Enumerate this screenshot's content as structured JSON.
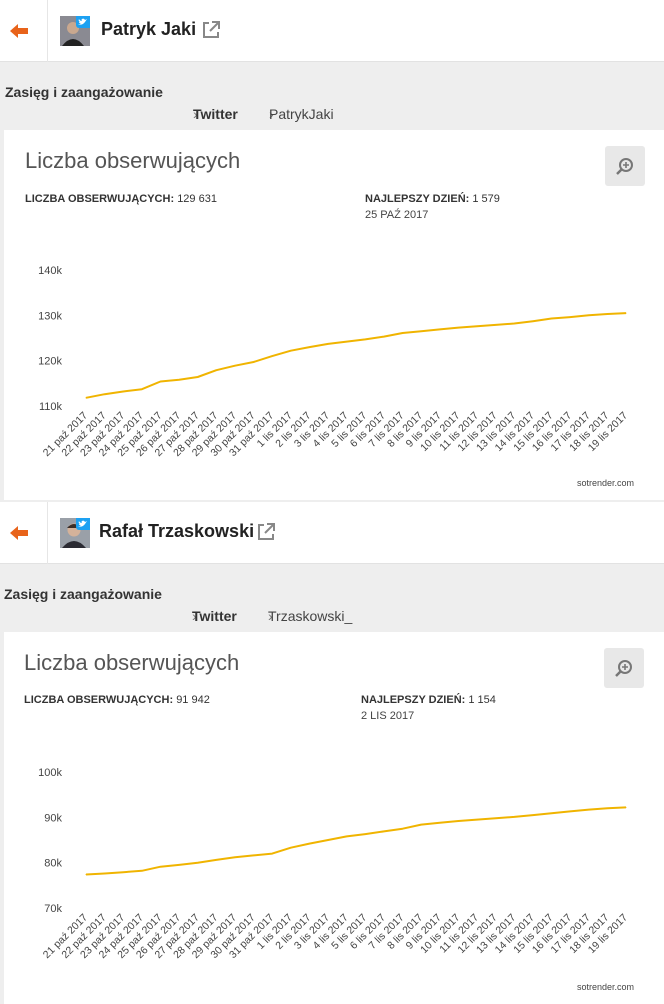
{
  "profiles": [
    {
      "name": "Patryk Jaki",
      "breadcrumb": {
        "section": "Zasięg i zaangażowanie",
        "network": "Twitter",
        "account": "PatrykJaki"
      },
      "card": {
        "title": "Liczba obserwujących",
        "followers_label": "LICZBA OBSERWUJĄCYCH:",
        "followers_value": "129 631",
        "best_day_label": "NAJLEPSZY DZIEŃ:",
        "best_day_value": "1 579",
        "best_day_date": "25 PAŹ 2017",
        "credit": "sotrender.com"
      },
      "chart_data": {
        "type": "line",
        "categories": [
          "21 paź 2017",
          "22 paź 2017",
          "23 paź 2017",
          "24 paź 2017",
          "25 paź 2017",
          "26 paź 2017",
          "27 paź 2017",
          "28 paź 2017",
          "29 paź 2017",
          "30 paź 2017",
          "31 paź 2017",
          "1 lis 2017",
          "2 lis 2017",
          "3 lis 2017",
          "4 lis 2017",
          "5 lis 2017",
          "6 lis 2017",
          "7 lis 2017",
          "8 lis 2017",
          "9 lis 2017",
          "10 lis 2017",
          "11 lis 2017",
          "12 lis 2017",
          "13 lis 2017",
          "14 lis 2017",
          "15 lis 2017",
          "16 lis 2017",
          "17 lis 2017",
          "18 lis 2017",
          "19 lis 2017"
        ],
        "values": [
          111800,
          112600,
          113200,
          113700,
          115400,
          115800,
          116400,
          117900,
          118900,
          119700,
          121000,
          122200,
          123000,
          123700,
          124200,
          124700,
          125300,
          126100,
          126500,
          126900,
          127300,
          127600,
          127900,
          128200,
          128700,
          129300,
          129600,
          130000,
          130300,
          130500
        ],
        "yticks": [
          "110k",
          "120k",
          "130k",
          "140k"
        ],
        "ylim": [
          110000,
          140000
        ],
        "color": "#f0b400",
        "grid": false
      }
    },
    {
      "name": "Rafał Trzaskowski",
      "breadcrumb": {
        "section": "Zasięg i zaangażowanie",
        "network": "Twitter",
        "account": "Trzaskowski_"
      },
      "card": {
        "title": "Liczba obserwujących",
        "followers_label": "LICZBA OBSERWUJĄCYCH:",
        "followers_value": "91 942",
        "best_day_label": "NAJLEPSZY DZIEŃ:",
        "best_day_value": "1 154",
        "best_day_date": "2 LIS 2017",
        "credit": "sotrender.com"
      },
      "chart_data": {
        "type": "line",
        "categories": [
          "21 paź 2017",
          "22 paź 2017",
          "23 paź 2017",
          "24 paź 2017",
          "25 paź 2017",
          "26 paź 2017",
          "27 paź 2017",
          "28 paź 2017",
          "29 paź 2017",
          "30 paź 2017",
          "31 paź 2017",
          "1 lis 2017",
          "2 lis 2017",
          "3 lis 2017",
          "4 lis 2017",
          "5 lis 2017",
          "6 lis 2017",
          "7 lis 2017",
          "8 lis 2017",
          "9 lis 2017",
          "10 lis 2017",
          "11 lis 2017",
          "12 lis 2017",
          "13 lis 2017",
          "14 lis 2017",
          "15 lis 2017",
          "16 lis 2017",
          "17 lis 2017",
          "18 lis 2017",
          "19 lis 2017"
        ],
        "values": [
          77400,
          77600,
          77900,
          78200,
          79100,
          79500,
          80000,
          80600,
          81200,
          81600,
          82000,
          83300,
          84200,
          85000,
          85800,
          86300,
          86900,
          87500,
          88400,
          88800,
          89200,
          89500,
          89800,
          90100,
          90500,
          90900,
          91300,
          91700,
          92000,
          92200
        ],
        "yticks": [
          "70k",
          "80k",
          "90k",
          "100k"
        ],
        "ylim": [
          70000,
          100000
        ],
        "color": "#f0b400",
        "grid": false
      }
    }
  ],
  "colors": {
    "accent": "#e8631a",
    "line": "#f0b400",
    "twitter": "#1da1f2"
  },
  "icons": {
    "back": "arrow-left-icon",
    "external": "external-link-icon",
    "zoom": "zoom-in-icon"
  }
}
